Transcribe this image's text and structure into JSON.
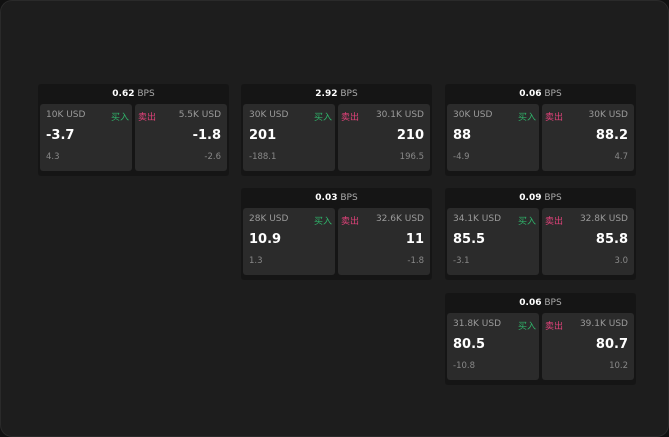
{
  "labels": {
    "buy": "买入",
    "sell": "卖出",
    "unit": "BPS"
  },
  "colors": {
    "buy": "#2fb36a",
    "sell": "#e0427a"
  },
  "cards": [
    {
      "spread": "0.62",
      "bid_qty": "10K USD",
      "bid": "-3.7",
      "bid_chg": "4.3",
      "ask_qty": "5.5K USD",
      "ask": "-1.8",
      "ask_chg": "-2.6"
    },
    {
      "spread": "2.92",
      "bid_qty": "30K USD",
      "bid": "201",
      "bid_chg": "-188.1",
      "ask_qty": "30.1K USD",
      "ask": "210",
      "ask_chg": "196.5"
    },
    {
      "spread": "0.06",
      "bid_qty": "30K USD",
      "bid": "88",
      "bid_chg": "-4.9",
      "ask_qty": "30K USD",
      "ask": "88.2",
      "ask_chg": "4.7"
    },
    {
      "spread": "0.03",
      "bid_qty": "28K USD",
      "bid": "10.9",
      "bid_chg": "1.3",
      "ask_qty": "32.6K USD",
      "ask": "11",
      "ask_chg": "-1.8"
    },
    {
      "spread": "0.09",
      "bid_qty": "34.1K USD",
      "bid": "85.5",
      "bid_chg": "-3.1",
      "ask_qty": "32.8K USD",
      "ask": "85.8",
      "ask_chg": "3.0"
    },
    {
      "spread": "0.06",
      "bid_qty": "31.8K USD",
      "bid": "80.5",
      "bid_chg": "-10.8",
      "ask_qty": "39.1K USD",
      "ask": "80.7",
      "ask_chg": "10.2"
    }
  ]
}
